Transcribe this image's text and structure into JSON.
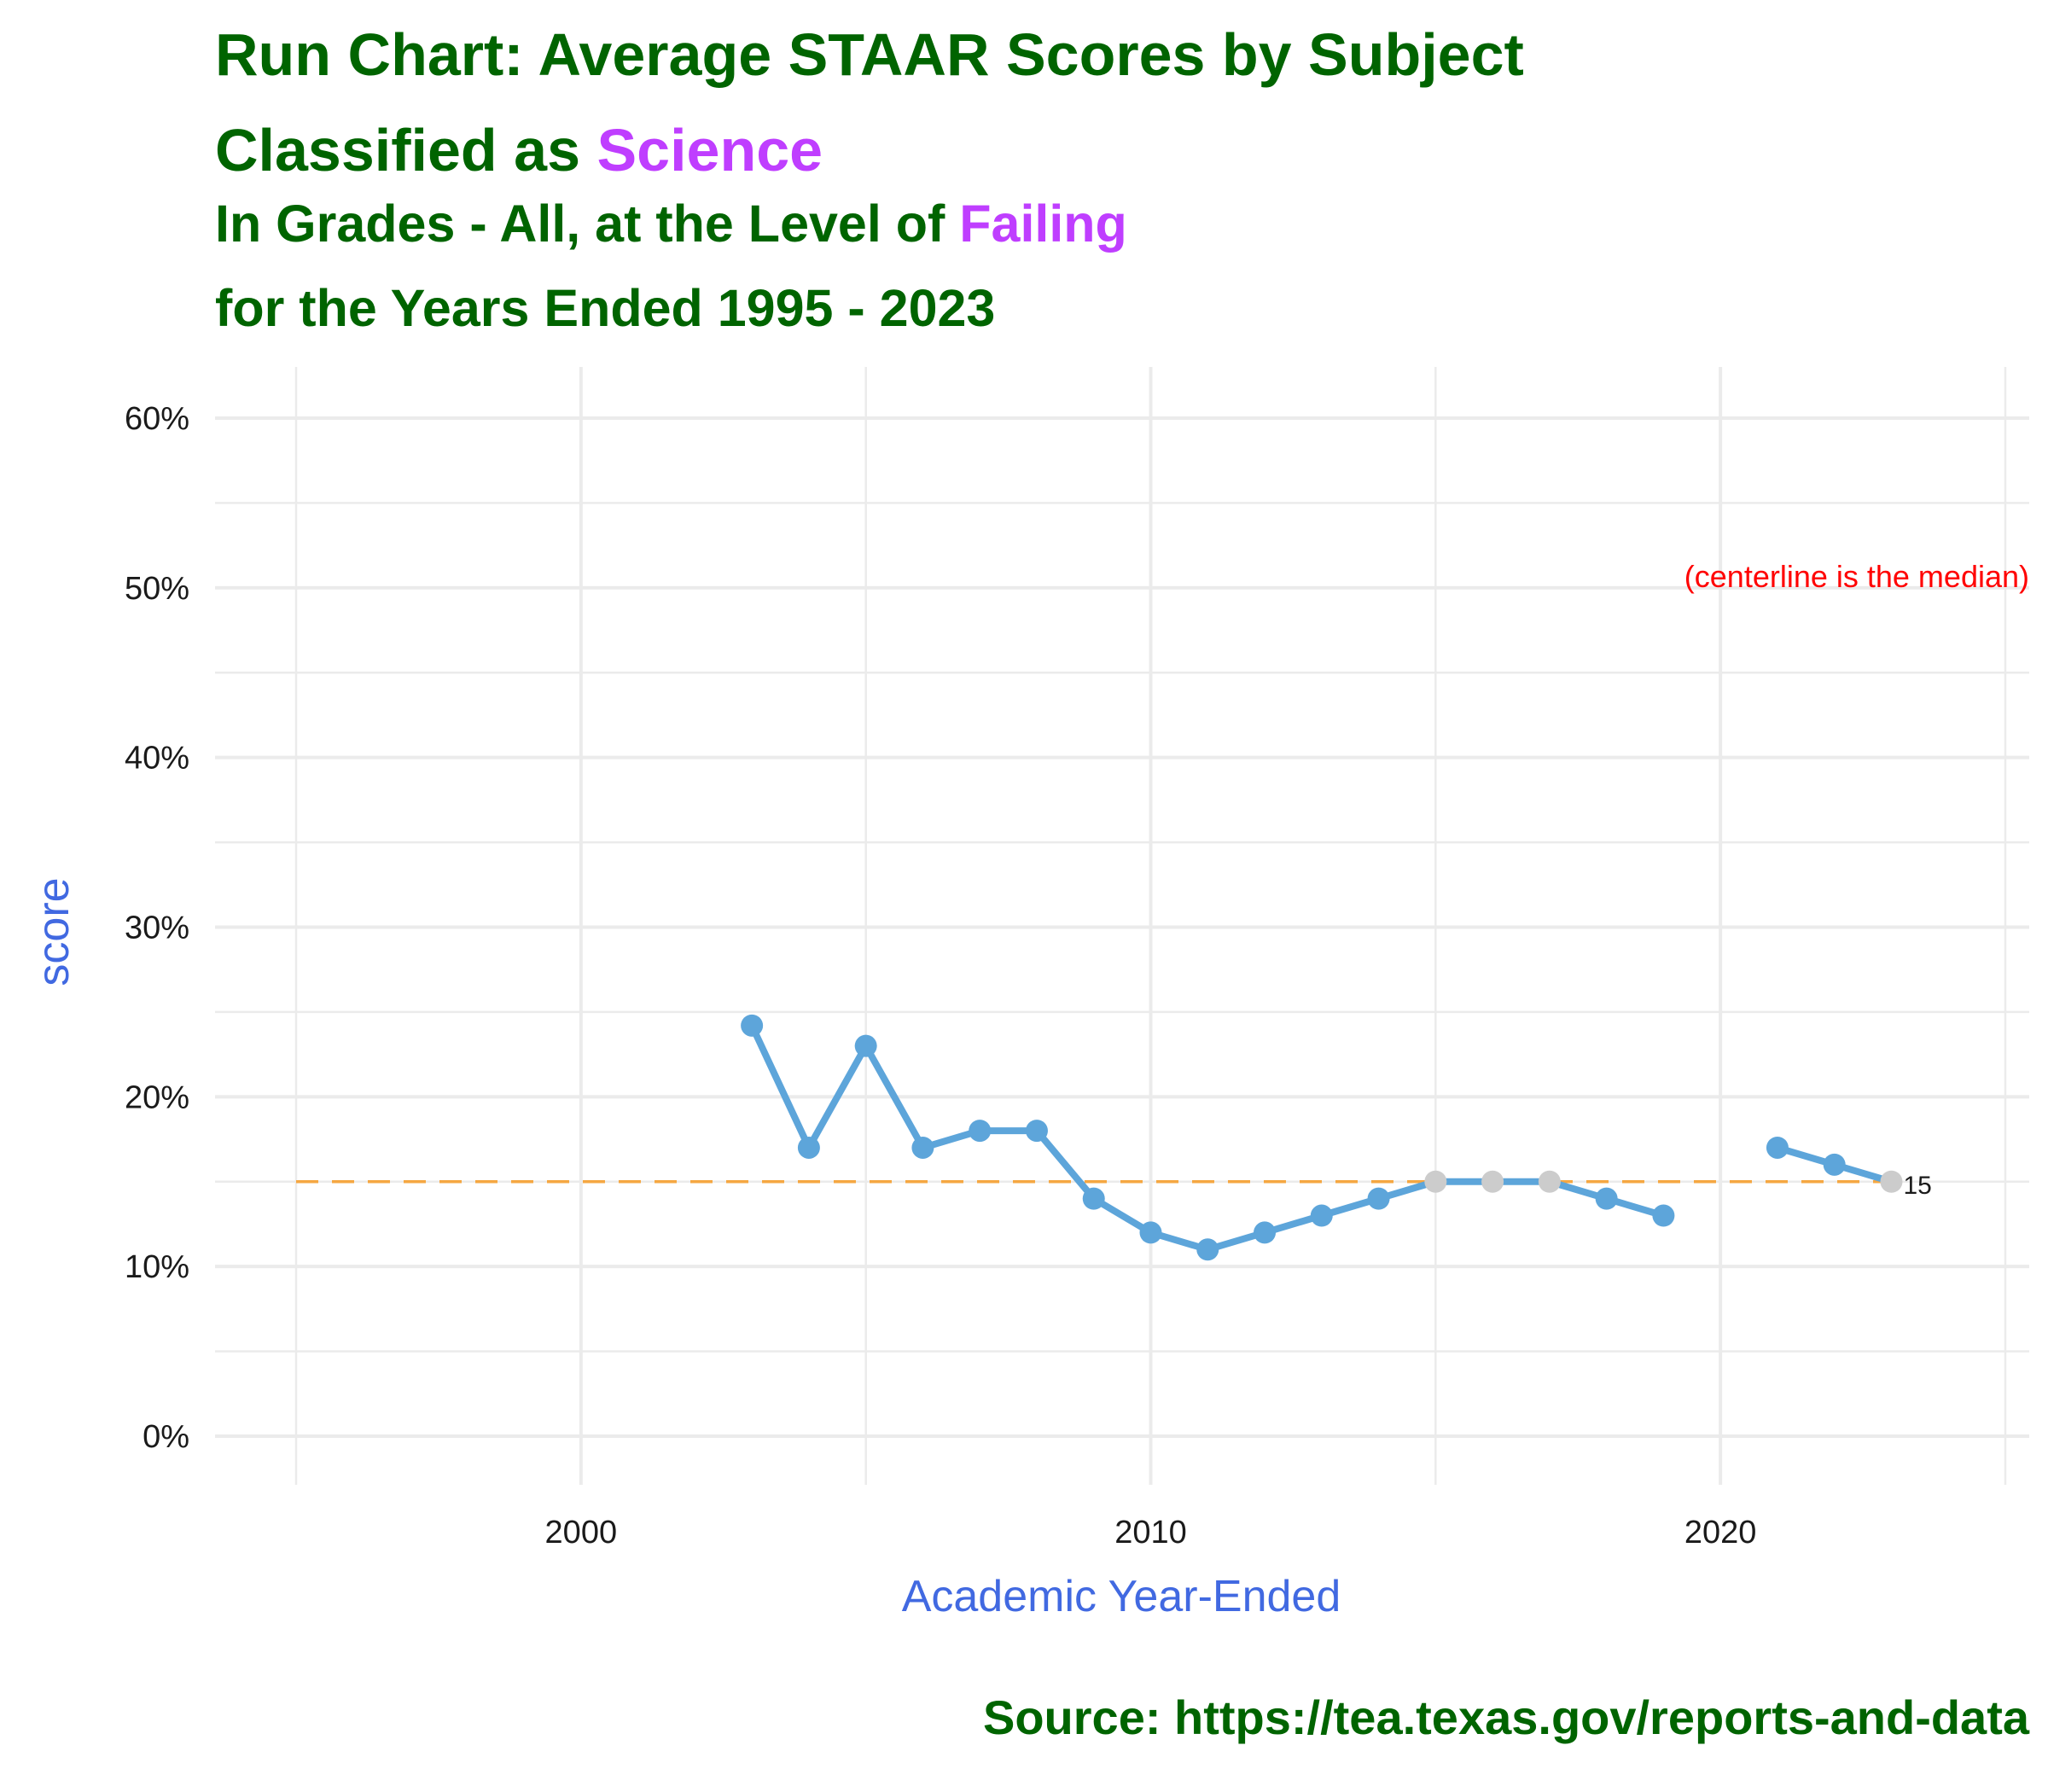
{
  "title": {
    "line1": "Run Chart: Average STAAR Scores by Subject",
    "line2_prefix": "Classified as ",
    "line2_accent": "Science"
  },
  "subtitle": {
    "line1_prefix": "In Grades - All, at the Level of ",
    "line1_accent": "Failing",
    "line2": "for the Years Ended 1995 - 2023"
  },
  "caption": "Source:  https://tea.texas.gov/reports-and-data",
  "colors": {
    "title": "#006400",
    "accent": "#BF3EFF",
    "axis_title": "#4169E1",
    "line": "#5DA5DA",
    "point": "#5DA5DA",
    "point_on_median": "#CCCCCC",
    "median": "#F5A742",
    "annotation": "#FF0000",
    "grid": "#EBEBEB"
  },
  "chart_data": {
    "type": "line",
    "xlabel": "Academic Year-Ended",
    "ylabel": "score",
    "xlim": [
      1995,
      2025
    ],
    "ylim": [
      0,
      60
    ],
    "x_ticks": [
      2000,
      2010,
      2020
    ],
    "x_tick_labels": [
      "2000",
      "2010",
      "2020"
    ],
    "y_ticks": [
      0,
      10,
      20,
      30,
      40,
      50,
      60
    ],
    "y_tick_labels": [
      "0%",
      "10%",
      "20%",
      "30%",
      "40%",
      "50%",
      "60%"
    ],
    "grid": true,
    "legend": "none",
    "median": 15,
    "annotation": "(centerline is the median)",
    "end_label": "15",
    "series": [
      {
        "x": [
          2003,
          2004,
          2005,
          2006,
          2007,
          2008,
          2009,
          2010,
          2011,
          2012,
          2013,
          2014,
          2015,
          2016,
          2017,
          2018,
          2019,
          2020,
          2021,
          2022,
          2023
        ],
        "values": [
          24.2,
          17,
          23,
          17,
          18,
          18,
          14,
          12,
          11,
          12,
          13,
          14,
          15,
          15,
          15,
          14,
          13,
          null,
          17,
          16,
          15
        ]
      }
    ]
  }
}
